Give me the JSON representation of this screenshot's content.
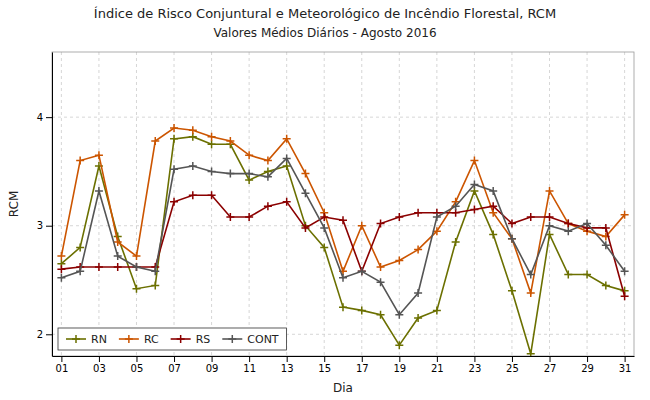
{
  "chart_data": {
    "type": "line",
    "title": "Índice de Risco Conjuntural e Meteorológico de Incêndio Florestal,  RCM",
    "subtitle": "Valores Médios Diários - Agosto 2016",
    "xlabel": "Dia",
    "ylabel": "RCM",
    "x": [
      1,
      2,
      3,
      4,
      5,
      6,
      7,
      8,
      9,
      10,
      11,
      12,
      13,
      14,
      15,
      16,
      17,
      18,
      19,
      20,
      21,
      22,
      23,
      24,
      25,
      26,
      27,
      28,
      29,
      30,
      31
    ],
    "series": [
      {
        "name": "RN",
        "color": "#6b7000",
        "values": [
          2.65,
          2.8,
          3.55,
          2.9,
          2.42,
          2.45,
          3.8,
          3.82,
          3.75,
          3.75,
          3.42,
          3.5,
          3.55,
          3.0,
          2.8,
          2.25,
          2.22,
          2.18,
          1.9,
          2.15,
          2.22,
          2.85,
          3.32,
          2.92,
          2.4,
          1.82,
          2.92,
          2.55,
          2.55,
          2.45,
          2.4
        ]
      },
      {
        "name": "RC",
        "color": "#cc5500",
        "values": [
          2.72,
          3.6,
          3.65,
          2.85,
          2.72,
          3.78,
          3.9,
          3.88,
          3.82,
          3.78,
          3.65,
          3.6,
          3.8,
          3.48,
          3.12,
          2.58,
          3.0,
          2.62,
          2.68,
          2.78,
          2.95,
          3.22,
          3.6,
          3.12,
          2.88,
          2.38,
          3.32,
          3.02,
          2.95,
          2.9,
          3.1
        ]
      },
      {
        "name": "RS",
        "color": "#8b0000",
        "values": [
          2.6,
          2.62,
          2.62,
          2.62,
          2.62,
          2.62,
          3.22,
          3.28,
          3.28,
          3.08,
          3.08,
          3.18,
          3.22,
          2.98,
          3.08,
          3.05,
          2.58,
          3.02,
          3.08,
          3.12,
          3.12,
          3.12,
          3.15,
          3.18,
          3.02,
          3.08,
          3.08,
          3.02,
          2.98,
          2.98,
          2.35
        ]
      },
      {
        "name": "CONT",
        "color": "#555555",
        "values": [
          2.52,
          2.58,
          3.32,
          2.72,
          2.62,
          2.58,
          3.52,
          3.55,
          3.5,
          3.48,
          3.48,
          3.45,
          3.62,
          3.3,
          2.98,
          2.52,
          2.58,
          2.48,
          2.18,
          2.38,
          3.08,
          3.18,
          3.38,
          3.32,
          2.88,
          2.55,
          3.0,
          2.95,
          3.02,
          2.82,
          2.58
        ]
      }
    ],
    "xlim": [
      0.5,
      31.5
    ],
    "xticks": [
      {
        "value": 1,
        "label": "01"
      },
      {
        "value": 3,
        "label": "03"
      },
      {
        "value": 5,
        "label": "05"
      },
      {
        "value": 7,
        "label": "07"
      },
      {
        "value": 9,
        "label": "09"
      },
      11,
      13,
      15,
      17,
      19,
      21,
      23,
      25,
      27,
      29,
      31
    ],
    "ylim": [
      1.8,
      4.6
    ],
    "yticks": [
      2,
      3,
      4
    ],
    "marker": "plus",
    "line_style": "solid",
    "grid": true,
    "legend": "lower left"
  }
}
